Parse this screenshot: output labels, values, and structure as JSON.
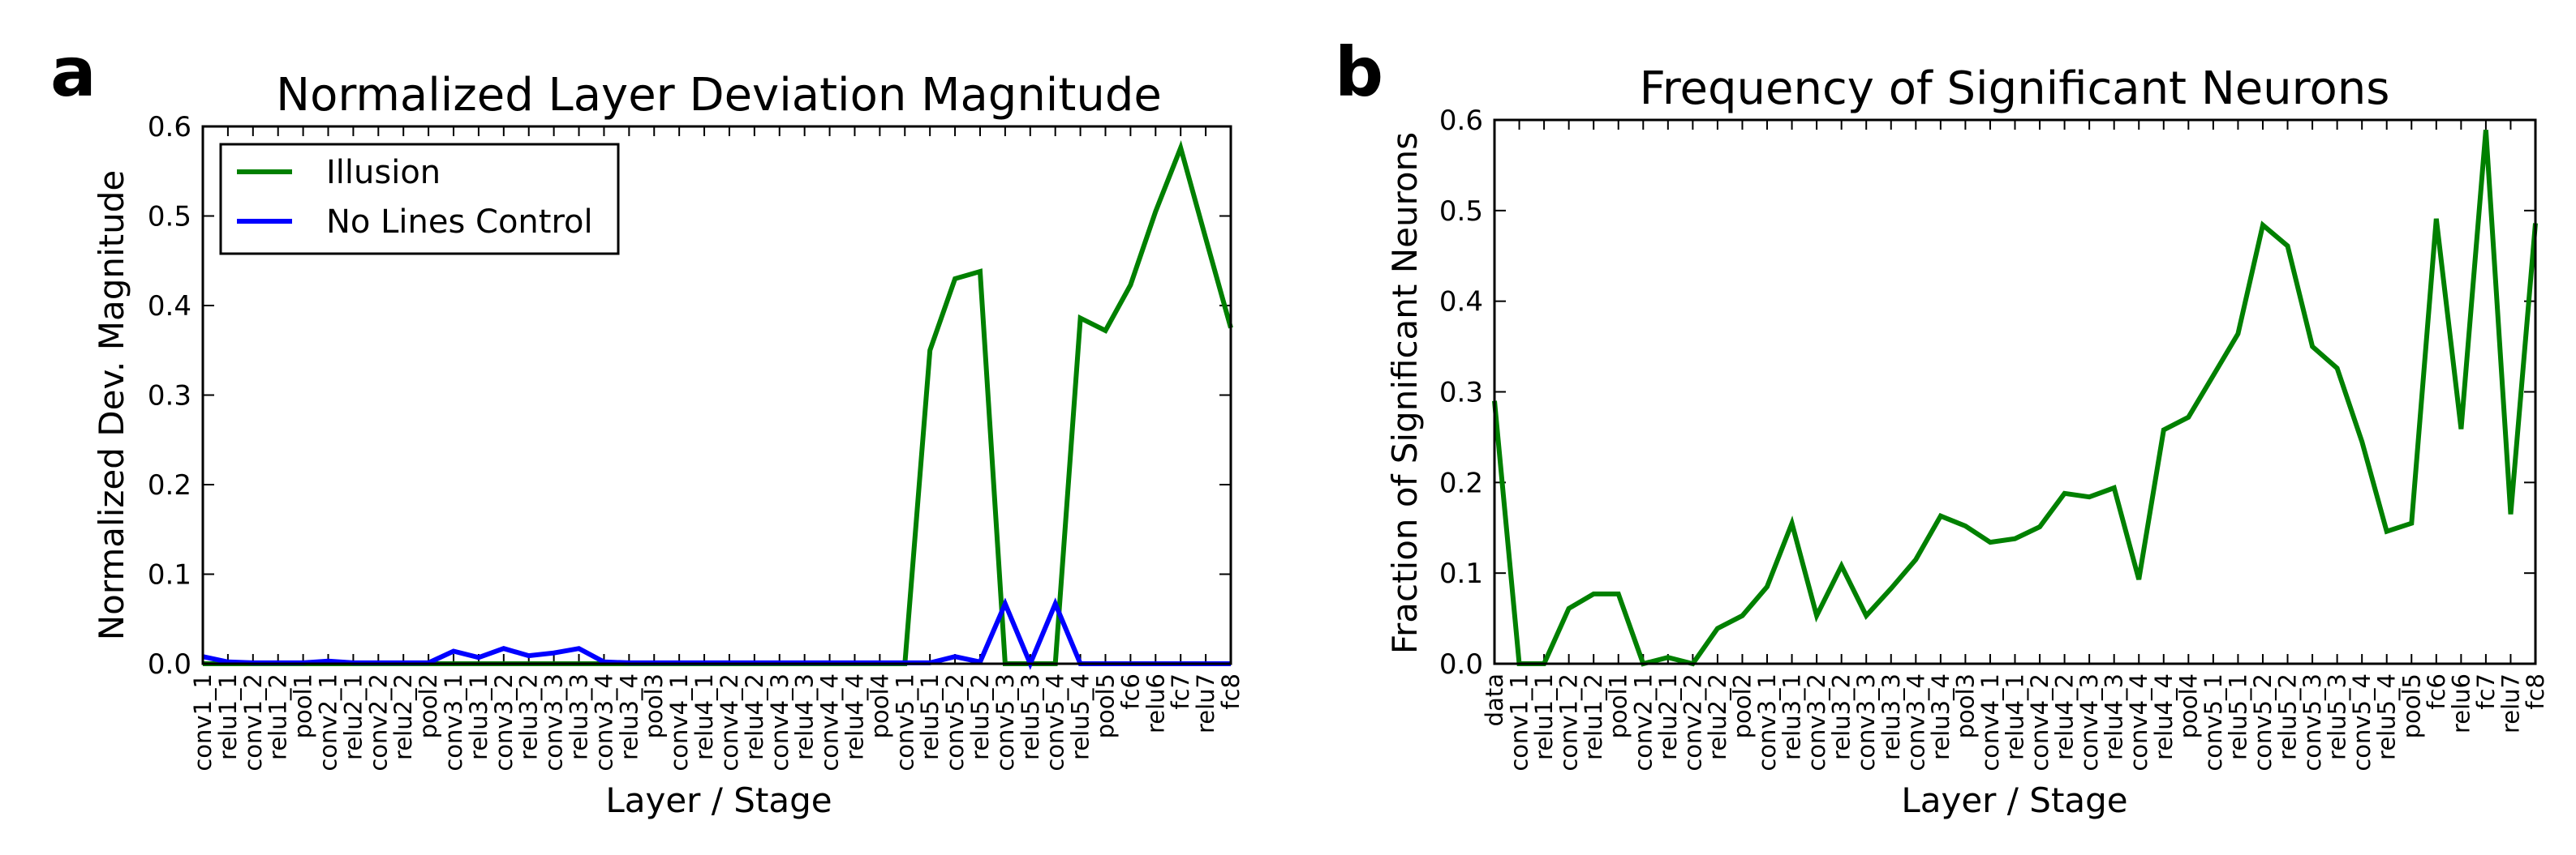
{
  "panels": [
    {
      "letter": "a"
    },
    {
      "letter": "b"
    }
  ],
  "chart_data": [
    {
      "type": "line",
      "title": "Normalized Layer Deviation Magnitude",
      "xlabel": "Layer / Stage",
      "ylabel": "Normalized Dev. Magnitude",
      "ylim": [
        0,
        0.6
      ],
      "yticks": [
        "0.0",
        "0.1",
        "0.2",
        "0.3",
        "0.4",
        "0.5",
        "0.6"
      ],
      "grid": false,
      "legend_position": "top-left",
      "categories": [
        "conv1_1",
        "relu1_1",
        "conv1_2",
        "relu1_2",
        "pool1",
        "conv2_1",
        "relu2_1",
        "conv2_2",
        "relu2_2",
        "pool2",
        "conv3_1",
        "relu3_1",
        "conv3_2",
        "relu3_2",
        "conv3_3",
        "relu3_3",
        "conv3_4",
        "relu3_4",
        "pool3",
        "conv4_1",
        "relu4_1",
        "conv4_2",
        "relu4_2",
        "conv4_3",
        "relu4_3",
        "conv4_4",
        "relu4_4",
        "pool4",
        "conv5_1",
        "relu5_1",
        "conv5_2",
        "relu5_2",
        "conv5_3",
        "relu5_3",
        "conv5_4",
        "relu5_4",
        "pool5",
        "fc6",
        "relu6",
        "fc7",
        "relu7",
        "fc8"
      ],
      "series": [
        {
          "name": "Illusion",
          "color": "#008000",
          "values": [
            0,
            0,
            0,
            0,
            0,
            0,
            0,
            0,
            0,
            0,
            0,
            0,
            0,
            0,
            0,
            0,
            0,
            0,
            0,
            0,
            0,
            0,
            0,
            0,
            0,
            0,
            0,
            0,
            0,
            0.35,
            0.43,
            0.438,
            0,
            0,
            0,
            0.386,
            0.372,
            0.423,
            0.505,
            0.576,
            0.475,
            0.375
          ]
        },
        {
          "name": "No Lines Control",
          "color": "#0000ff",
          "values": [
            0.008,
            0.002,
            0.001,
            0.001,
            0.001,
            0.003,
            0.001,
            0.001,
            0.001,
            0.001,
            0.014,
            0.007,
            0.017,
            0.009,
            0.012,
            0.017,
            0.002,
            0.001,
            0.001,
            0.001,
            0.001,
            0.001,
            0.001,
            0.001,
            0.001,
            0.001,
            0.001,
            0.001,
            0.001,
            0.001,
            0.008,
            0.002,
            0.067,
            0,
            0.067,
            0,
            0,
            0,
            0,
            0,
            0,
            0
          ]
        }
      ]
    },
    {
      "type": "line",
      "title": "Frequency of Significant Neurons",
      "xlabel": "Layer / Stage",
      "ylabel": "Fraction of Significant Neurons",
      "ylim": [
        0,
        0.6
      ],
      "yticks": [
        "0.0",
        "0.1",
        "0.2",
        "0.3",
        "0.4",
        "0.5",
        "0.6"
      ],
      "grid": false,
      "categories": [
        "data",
        "conv1_1",
        "relu1_1",
        "conv1_2",
        "relu1_2",
        "pool1",
        "conv2_1",
        "relu2_1",
        "conv2_2",
        "relu2_2",
        "pool2",
        "conv3_1",
        "relu3_1",
        "conv3_2",
        "relu3_2",
        "conv3_3",
        "relu3_3",
        "conv3_4",
        "relu3_4",
        "pool3",
        "conv4_1",
        "relu4_1",
        "conv4_2",
        "relu4_2",
        "conv4_3",
        "relu4_3",
        "conv4_4",
        "relu4_4",
        "pool4",
        "conv5_1",
        "relu5_1",
        "conv5_2",
        "relu5_2",
        "conv5_3",
        "relu5_3",
        "conv5_4",
        "relu5_4",
        "pool5",
        "fc6",
        "relu6",
        "fc7",
        "relu7",
        "fc8"
      ],
      "series": [
        {
          "color": "#008000",
          "values": [
            0.29,
            0,
            0,
            0.061,
            0.077,
            0.077,
            0,
            0.007,
            0,
            0.039,
            0.053,
            0.085,
            0.155,
            0.053,
            0.108,
            0.053,
            0.083,
            0.115,
            0.163,
            0.152,
            0.134,
            0.138,
            0.151,
            0.188,
            0.184,
            0.194,
            0.093,
            0.258,
            0.272,
            0.318,
            0.364,
            0.484,
            0.461,
            0.35,
            0.326,
            0.245,
            0.146,
            0.155,
            0.491,
            0.259,
            0.589,
            0.165,
            0.486
          ]
        }
      ]
    }
  ]
}
